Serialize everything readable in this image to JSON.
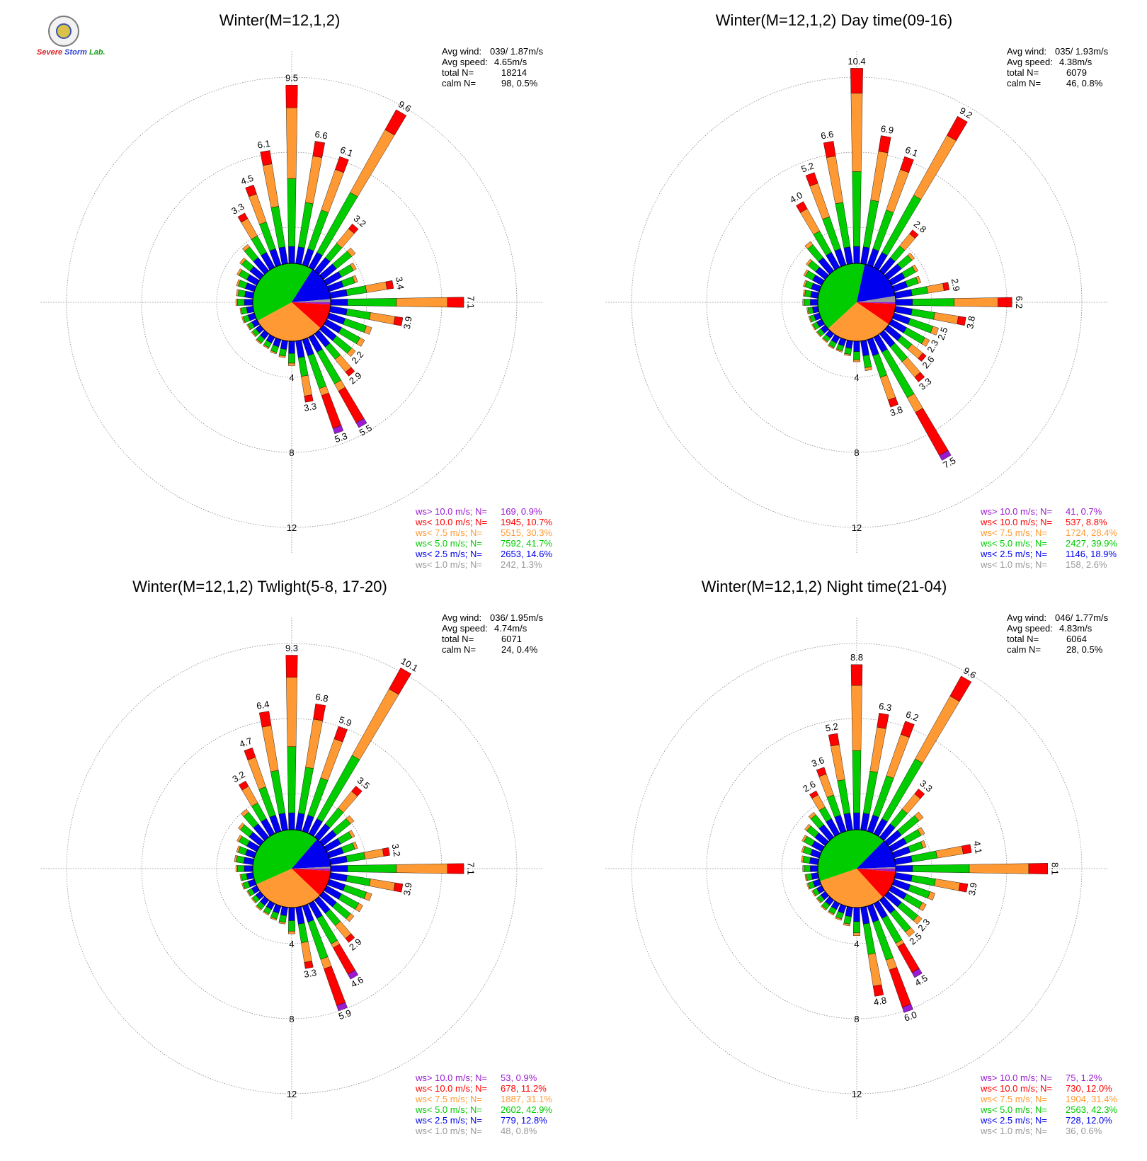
{
  "logo": {
    "line1": "Severe",
    "line2": "Storm",
    "line3": "Lab."
  },
  "legend_labels": [
    "ws> 10.0 m/s; N=",
    "ws< 10.0 m/s; N=",
    "ws<  7.5 m/s; N=",
    "ws<  5.0 m/s; N=",
    "ws<  2.5 m/s; N=",
    "ws<  1.0 m/s; N="
  ],
  "stats_labels": [
    "Avg wind:",
    "Avg speed:",
    "total N=",
    "calm N="
  ],
  "colors": {
    "gt10": "#9b1bd1",
    "lt10": "#ff0000",
    "lt75": "#ff9933",
    "lt5": "#00cc00",
    "lt25": "#0000ee",
    "lt1": "#999999",
    "grid": "#888888"
  },
  "chart_data": [
    {
      "type": "wind-rose",
      "title": "Winter(M=12,1,2)",
      "avg_wind": "039/ 1.87m/s",
      "avg_speed": "4.65m/s",
      "total_n": "18214",
      "calm": "98,   0.5%",
      "rings": [
        "4",
        "8",
        "12"
      ],
      "legend": [
        "169,  0.9%",
        "1945, 10.7%",
        "5515, 30.3%",
        "7592, 41.7%",
        "2653, 14.6%",
        "242,  1.3%"
      ],
      "pie": [
        0.9,
        10.7,
        30.3,
        41.7,
        14.6,
        1.3
      ],
      "petals": [
        {
          "dir": 0,
          "total": 9.5,
          "label": "9.5"
        },
        {
          "dir": 10,
          "total": 6.6,
          "label": "6.6"
        },
        {
          "dir": 20,
          "total": 6.1,
          "label": "6.1"
        },
        {
          "dir": 30,
          "total": 9.6,
          "label": "9.6"
        },
        {
          "dir": 40,
          "total": 3.2,
          "label": "3.2"
        },
        {
          "dir": 50,
          "total": 2.2
        },
        {
          "dir": 60,
          "total": 1.8
        },
        {
          "dir": 70,
          "total": 1.6
        },
        {
          "dir": 80,
          "total": 3.4,
          "label": "3.4"
        },
        {
          "dir": 90,
          "total": 7.1,
          "label": "7.1"
        },
        {
          "dir": 100,
          "total": 3.9,
          "label": "3.9"
        },
        {
          "dir": 110,
          "total": 2.4
        },
        {
          "dir": 120,
          "total": 2.3
        },
        {
          "dir": 130,
          "total": 2.2,
          "label": "2.2"
        },
        {
          "dir": 140,
          "total": 2.9,
          "label": "2.9"
        },
        {
          "dir": 150,
          "total": 5.5,
          "label": "5.5"
        },
        {
          "dir": 160,
          "total": 5.3,
          "label": "5.3"
        },
        {
          "dir": 170,
          "total": 3.3,
          "label": "3.3"
        },
        {
          "dir": 180,
          "total": 1.3
        },
        {
          "dir": 190,
          "total": 0.9
        },
        {
          "dir": 200,
          "total": 0.8
        },
        {
          "dir": 210,
          "total": 0.7
        },
        {
          "dir": 220,
          "total": 0.7
        },
        {
          "dir": 230,
          "total": 0.6
        },
        {
          "dir": 240,
          "total": 0.6
        },
        {
          "dir": 250,
          "total": 0.7
        },
        {
          "dir": 260,
          "total": 0.7
        },
        {
          "dir": 270,
          "total": 0.9
        },
        {
          "dir": 280,
          "total": 0.9
        },
        {
          "dir": 290,
          "total": 1.0
        },
        {
          "dir": 300,
          "total": 1.2
        },
        {
          "dir": 310,
          "total": 1.4
        },
        {
          "dir": 320,
          "total": 1.8
        },
        {
          "dir": 330,
          "total": 3.3,
          "label": "3.3"
        },
        {
          "dir": 340,
          "total": 4.5,
          "label": "4.5"
        },
        {
          "dir": 350,
          "total": 6.1,
          "label": "6.1"
        }
      ]
    },
    {
      "type": "wind-rose",
      "title": "Winter(M=12,1,2) Day time(09-16)",
      "avg_wind": "035/ 1.93m/s",
      "avg_speed": "4.38m/s",
      "total_n": "6079",
      "calm": "46,   0.8%",
      "rings": [
        "4",
        "8",
        "12"
      ],
      "legend": [
        "41,  0.7%",
        "537,  8.8%",
        "1724, 28.4%",
        "2427, 39.9%",
        "1146, 18.9%",
        "158,  2.6%"
      ],
      "pie": [
        0.7,
        8.8,
        28.4,
        39.9,
        18.9,
        2.6
      ],
      "petals": [
        {
          "dir": 0,
          "total": 10.4,
          "label": "10.4"
        },
        {
          "dir": 10,
          "total": 6.9,
          "label": "6.9"
        },
        {
          "dir": 20,
          "total": 6.1,
          "label": "6.1"
        },
        {
          "dir": 30,
          "total": 9.2,
          "label": "9.2"
        },
        {
          "dir": 40,
          "total": 2.8,
          "label": "2.8"
        },
        {
          "dir": 50,
          "total": 1.8
        },
        {
          "dir": 60,
          "total": 1.6
        },
        {
          "dir": 70,
          "total": 1.5
        },
        {
          "dir": 80,
          "total": 2.9,
          "label": "2.9"
        },
        {
          "dir": 90,
          "total": 6.2,
          "label": "6.2"
        },
        {
          "dir": 100,
          "total": 3.8,
          "label": "3.8"
        },
        {
          "dir": 110,
          "total": 2.5,
          "label": "2.5"
        },
        {
          "dir": 120,
          "total": 2.3,
          "label": "2.3"
        },
        {
          "dir": 130,
          "total": 2.6,
          "label": "2.6"
        },
        {
          "dir": 140,
          "total": 3.3,
          "label": "3.3"
        },
        {
          "dir": 150,
          "total": 7.5,
          "label": "7.5"
        },
        {
          "dir": 160,
          "total": 3.8,
          "label": "3.8"
        },
        {
          "dir": 170,
          "total": 1.6
        },
        {
          "dir": 180,
          "total": 1.1
        },
        {
          "dir": 190,
          "total": 0.8
        },
        {
          "dir": 200,
          "total": 0.7
        },
        {
          "dir": 210,
          "total": 0.7
        },
        {
          "dir": 220,
          "total": 0.6
        },
        {
          "dir": 230,
          "total": 0.6
        },
        {
          "dir": 240,
          "total": 0.6
        },
        {
          "dir": 250,
          "total": 0.6
        },
        {
          "dir": 260,
          "total": 0.6
        },
        {
          "dir": 270,
          "total": 0.8
        },
        {
          "dir": 280,
          "total": 0.8
        },
        {
          "dir": 290,
          "total": 0.9
        },
        {
          "dir": 300,
          "total": 1.1
        },
        {
          "dir": 310,
          "total": 1.3
        },
        {
          "dir": 320,
          "total": 2.0
        },
        {
          "dir": 330,
          "total": 4.0,
          "label": "4.0"
        },
        {
          "dir": 340,
          "total": 5.2,
          "label": "5.2"
        },
        {
          "dir": 350,
          "total": 6.6,
          "label": "6.6"
        }
      ]
    },
    {
      "type": "wind-rose",
      "title": "Winter(M=12,1,2) Twlight(5-8, 17-20)",
      "avg_wind": "036/ 1.95m/s",
      "avg_speed": "4.74m/s",
      "total_n": "6071",
      "calm": "24,   0.4%",
      "rings": [
        "4",
        "8",
        "12"
      ],
      "legend": [
        "53,  0.9%",
        "678, 11.2%",
        "1887, 31.1%",
        "2602, 42.9%",
        "779, 12.8%",
        "48,  0.8%"
      ],
      "pie": [
        0.9,
        11.2,
        31.1,
        42.9,
        12.8,
        0.8
      ],
      "petals": [
        {
          "dir": 0,
          "total": 9.3,
          "label": "9.3"
        },
        {
          "dir": 10,
          "total": 6.8,
          "label": "6.8"
        },
        {
          "dir": 20,
          "total": 5.9,
          "label": "5.9"
        },
        {
          "dir": 30,
          "total": 10.1,
          "label": "10.1"
        },
        {
          "dir": 40,
          "total": 3.5,
          "label": "3.5"
        },
        {
          "dir": 50,
          "total": 2.1
        },
        {
          "dir": 60,
          "total": 1.7
        },
        {
          "dir": 70,
          "total": 1.6
        },
        {
          "dir": 80,
          "total": 3.2,
          "label": "3.2"
        },
        {
          "dir": 90,
          "total": 7.1,
          "label": "7.1"
        },
        {
          "dir": 100,
          "total": 3.9,
          "label": "3.9"
        },
        {
          "dir": 110,
          "total": 2.4
        },
        {
          "dir": 120,
          "total": 2.2
        },
        {
          "dir": 130,
          "total": 2.1
        },
        {
          "dir": 140,
          "total": 2.9,
          "label": "2.9"
        },
        {
          "dir": 150,
          "total": 4.6,
          "label": "4.6"
        },
        {
          "dir": 160,
          "total": 5.9,
          "label": "5.9"
        },
        {
          "dir": 170,
          "total": 3.3,
          "label": "3.3"
        },
        {
          "dir": 180,
          "total": 1.4
        },
        {
          "dir": 190,
          "total": 0.9
        },
        {
          "dir": 200,
          "total": 0.8
        },
        {
          "dir": 210,
          "total": 0.7
        },
        {
          "dir": 220,
          "total": 0.7
        },
        {
          "dir": 230,
          "total": 0.6
        },
        {
          "dir": 240,
          "total": 0.6
        },
        {
          "dir": 250,
          "total": 0.7
        },
        {
          "dir": 260,
          "total": 0.7
        },
        {
          "dir": 270,
          "total": 0.9
        },
        {
          "dir": 280,
          "total": 1.0
        },
        {
          "dir": 290,
          "total": 1.0
        },
        {
          "dir": 300,
          "total": 1.2
        },
        {
          "dir": 310,
          "total": 1.5
        },
        {
          "dir": 320,
          "total": 1.9
        },
        {
          "dir": 330,
          "total": 3.2,
          "label": "3.2"
        },
        {
          "dir": 340,
          "total": 4.7,
          "label": "4.7"
        },
        {
          "dir": 350,
          "total": 6.4,
          "label": "6.4"
        }
      ]
    },
    {
      "type": "wind-rose",
      "title": "Winter(M=12,1,2) Night time(21-04)",
      "avg_wind": "046/ 1.77m/s",
      "avg_speed": "4.83m/s",
      "total_n": "6064",
      "calm": "28,   0.5%",
      "rings": [
        "4",
        "8",
        "12"
      ],
      "legend": [
        "75,  1.2%",
        "730, 12.0%",
        "1904, 31.4%",
        "2563, 42.3%",
        "728, 12.0%",
        "36,  0.6%"
      ],
      "pie": [
        1.2,
        12.0,
        31.4,
        42.3,
        12.0,
        0.6
      ],
      "petals": [
        {
          "dir": 0,
          "total": 8.8,
          "label": "8.8"
        },
        {
          "dir": 10,
          "total": 6.3,
          "label": "6.3"
        },
        {
          "dir": 20,
          "total": 6.2,
          "label": "6.2"
        },
        {
          "dir": 30,
          "total": 9.6,
          "label": "9.6"
        },
        {
          "dir": 40,
          "total": 3.3,
          "label": "3.3"
        },
        {
          "dir": 50,
          "total": 2.4
        },
        {
          "dir": 60,
          "total": 2.0
        },
        {
          "dir": 70,
          "total": 1.8
        },
        {
          "dir": 80,
          "total": 4.1,
          "label": "4.1"
        },
        {
          "dir": 90,
          "total": 8.1,
          "label": "8.1"
        },
        {
          "dir": 100,
          "total": 3.9,
          "label": "3.9"
        },
        {
          "dir": 110,
          "total": 2.3
        },
        {
          "dir": 120,
          "total": 2.1
        },
        {
          "dir": 130,
          "total": 2.3,
          "label": "2.3"
        },
        {
          "dir": 140,
          "total": 2.5,
          "label": "2.5"
        },
        {
          "dir": 150,
          "total": 4.5,
          "label": "4.5"
        },
        {
          "dir": 160,
          "total": 6.0,
          "label": "6.0"
        },
        {
          "dir": 170,
          "total": 4.8,
          "label": "4.8"
        },
        {
          "dir": 180,
          "total": 1.5
        },
        {
          "dir": 190,
          "total": 1.0
        },
        {
          "dir": 200,
          "total": 0.8
        },
        {
          "dir": 210,
          "total": 0.7
        },
        {
          "dir": 220,
          "total": 0.7
        },
        {
          "dir": 230,
          "total": 0.6
        },
        {
          "dir": 240,
          "total": 0.6
        },
        {
          "dir": 250,
          "total": 0.7
        },
        {
          "dir": 260,
          "total": 0.7
        },
        {
          "dir": 270,
          "total": 0.8
        },
        {
          "dir": 280,
          "total": 0.9
        },
        {
          "dir": 290,
          "total": 1.0
        },
        {
          "dir": 300,
          "total": 1.2
        },
        {
          "dir": 310,
          "total": 1.4
        },
        {
          "dir": 320,
          "total": 1.7
        },
        {
          "dir": 330,
          "total": 2.6,
          "label": "2.6"
        },
        {
          "dir": 340,
          "total": 3.6,
          "label": "3.6"
        },
        {
          "dir": 350,
          "total": 5.2,
          "label": "5.2"
        }
      ]
    }
  ]
}
